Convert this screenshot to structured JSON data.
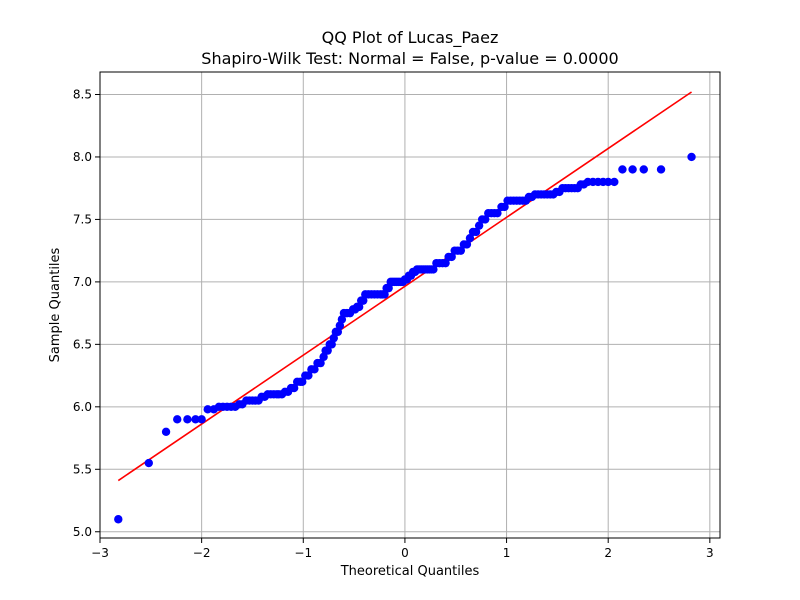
{
  "chart_data": {
    "type": "scatter",
    "title": "QQ Plot of Lucas_Paez",
    "subtitle": "Shapiro-Wilk Test: Normal = False, p-value = 0.0000",
    "xlabel": "Theoretical Quantiles",
    "ylabel": "Sample Quantiles",
    "xlim": [
      -3.0,
      3.1
    ],
    "ylim": [
      4.95,
      8.68
    ],
    "xticks": [
      -3,
      -2,
      -1,
      0,
      1,
      2,
      3
    ],
    "xtick_labels": [
      "−3",
      "−2",
      "−1",
      "0",
      "1",
      "2",
      "3"
    ],
    "yticks": [
      5.0,
      5.5,
      6.0,
      6.5,
      7.0,
      7.5,
      8.0,
      8.5
    ],
    "ytick_labels": [
      "5.0",
      "5.5",
      "6.0",
      "6.5",
      "7.0",
      "7.5",
      "8.0",
      "8.5"
    ],
    "grid": true,
    "marker_color": "#0000ff",
    "line_color": "#ff0000",
    "fit_line": {
      "x": [
        -2.82,
        2.82
      ],
      "y": [
        5.41,
        8.52
      ]
    },
    "quantile_groups": [
      {
        "y": 5.1,
        "x": [
          -2.82
        ]
      },
      {
        "y": 5.55,
        "x": [
          -2.52
        ]
      },
      {
        "y": 5.8,
        "x": [
          -2.35
        ]
      },
      {
        "y": 5.9,
        "x": [
          -2.24,
          -2.14,
          -2.06,
          -2.0
        ]
      },
      {
        "y": 5.98,
        "x": [
          -1.94,
          -1.88
        ]
      },
      {
        "y": 6.0,
        "x": [
          -1.83,
          -1.79,
          -1.75,
          -1.71,
          -1.67
        ]
      },
      {
        "y": 6.02,
        "x": [
          -1.63,
          -1.6
        ]
      },
      {
        "y": 6.05,
        "x": [
          -1.56,
          -1.53,
          -1.5,
          -1.47,
          -1.44
        ]
      },
      {
        "y": 6.08,
        "x": [
          -1.41,
          -1.38
        ]
      },
      {
        "y": 6.1,
        "x": [
          -1.35,
          -1.32,
          -1.29,
          -1.26,
          -1.24,
          -1.21
        ]
      },
      {
        "y": 6.12,
        "x": [
          -1.18,
          -1.15
        ]
      },
      {
        "y": 6.15,
        "x": [
          -1.12,
          -1.09
        ]
      },
      {
        "y": 6.2,
        "x": [
          -1.06,
          -1.03,
          -1.01
        ]
      },
      {
        "y": 6.25,
        "x": [
          -0.98,
          -0.95
        ]
      },
      {
        "y": 6.3,
        "x": [
          -0.92,
          -0.89
        ]
      },
      {
        "y": 6.35,
        "x": [
          -0.86,
          -0.83
        ]
      },
      {
        "y": 6.4,
        "x": [
          -0.8
        ]
      },
      {
        "y": 6.45,
        "x": [
          -0.78,
          -0.76
        ]
      },
      {
        "y": 6.5,
        "x": [
          -0.74,
          -0.72
        ]
      },
      {
        "y": 6.55,
        "x": [
          -0.7
        ]
      },
      {
        "y": 6.6,
        "x": [
          -0.68,
          -0.66
        ]
      },
      {
        "y": 6.65,
        "x": [
          -0.64
        ]
      },
      {
        "y": 6.7,
        "x": [
          -0.62
        ]
      },
      {
        "y": 6.75,
        "x": [
          -0.6,
          -0.57,
          -0.54
        ]
      },
      {
        "y": 6.78,
        "x": [
          -0.51,
          -0.49
        ]
      },
      {
        "y": 6.8,
        "x": [
          -0.47,
          -0.45
        ]
      },
      {
        "y": 6.85,
        "x": [
          -0.43,
          -0.41
        ]
      },
      {
        "y": 6.9,
        "x": [
          -0.39,
          -0.36,
          -0.33,
          -0.3,
          -0.27,
          -0.24,
          -0.22,
          -0.2
        ]
      },
      {
        "y": 6.95,
        "x": [
          -0.18,
          -0.16
        ]
      },
      {
        "y": 7.0,
        "x": [
          -0.14,
          -0.12,
          -0.1,
          -0.08,
          -0.06,
          -0.04,
          -0.02
        ]
      },
      {
        "y": 7.02,
        "x": [
          0.0,
          0.02
        ]
      },
      {
        "y": 7.05,
        "x": [
          0.04,
          0.06
        ]
      },
      {
        "y": 7.08,
        "x": [
          0.08,
          0.1
        ]
      },
      {
        "y": 7.1,
        "x": [
          0.12,
          0.14,
          0.16,
          0.18,
          0.2,
          0.22,
          0.24,
          0.26,
          0.28
        ]
      },
      {
        "y": 7.15,
        "x": [
          0.31,
          0.34,
          0.37,
          0.4
        ]
      },
      {
        "y": 7.2,
        "x": [
          0.43,
          0.46
        ]
      },
      {
        "y": 7.25,
        "x": [
          0.49,
          0.52,
          0.55
        ]
      },
      {
        "y": 7.3,
        "x": [
          0.58,
          0.61
        ]
      },
      {
        "y": 7.35,
        "x": [
          0.64
        ]
      },
      {
        "y": 7.4,
        "x": [
          0.67,
          0.7
        ]
      },
      {
        "y": 7.45,
        "x": [
          0.73
        ]
      },
      {
        "y": 7.5,
        "x": [
          0.76,
          0.79
        ]
      },
      {
        "y": 7.55,
        "x": [
          0.82,
          0.85,
          0.88,
          0.91
        ]
      },
      {
        "y": 7.6,
        "x": [
          0.95,
          0.98
        ]
      },
      {
        "y": 7.65,
        "x": [
          1.01,
          1.04,
          1.07,
          1.1,
          1.13,
          1.16,
          1.19
        ]
      },
      {
        "y": 7.68,
        "x": [
          1.22,
          1.25
        ]
      },
      {
        "y": 7.7,
        "x": [
          1.28,
          1.31,
          1.34,
          1.37,
          1.4,
          1.43,
          1.46
        ]
      },
      {
        "y": 7.72,
        "x": [
          1.49,
          1.52
        ]
      },
      {
        "y": 7.75,
        "x": [
          1.55,
          1.58,
          1.61,
          1.64,
          1.67,
          1.7
        ]
      },
      {
        "y": 7.78,
        "x": [
          1.73,
          1.76
        ]
      },
      {
        "y": 7.8,
        "x": [
          1.8,
          1.85,
          1.9,
          1.95,
          2.0,
          2.06
        ]
      },
      {
        "y": 7.9,
        "x": [
          2.14,
          2.24,
          2.35,
          2.52
        ]
      },
      {
        "y": 8.0,
        "x": [
          2.82
        ]
      }
    ]
  }
}
